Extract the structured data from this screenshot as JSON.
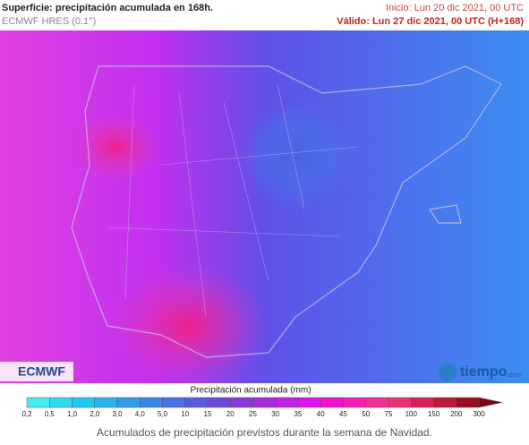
{
  "header": {
    "title": "Superficie: precipitación acumulada en 168h.",
    "model": "ECMWF HRES (0.1°)",
    "start": "Inicio: Lun 20 dic 2021, 00 UTC",
    "valid": "Válido: Lun 27 dic 2021, 00 UTC (H+168)"
  },
  "map": {
    "logo_left": "ECMWF",
    "logo_right": "tiempo",
    "logo_right_suffix": ".com"
  },
  "legend": {
    "title": "Precipitación acumulada (mm)",
    "labels": [
      "0,2",
      "0,5",
      "1,0",
      "2,0",
      "3,0",
      "4,0",
      "5,0",
      "10",
      "15",
      "20",
      "25",
      "30",
      "35",
      "40",
      "45",
      "50",
      "75",
      "100",
      "150",
      "200",
      "300"
    ],
    "colors": [
      "#46eaf2",
      "#2ed9f2",
      "#22c6f2",
      "#28b2f0",
      "#309cec",
      "#3a86e8",
      "#4a6ee4",
      "#5a5ae0",
      "#6c48dc",
      "#8a3ad8",
      "#a42edc",
      "#c220e6",
      "#de12ee",
      "#f010d4",
      "#f020b2",
      "#f03092",
      "#e83272",
      "#d62252",
      "#bc1838",
      "#9c0e20",
      "#7a0610"
    ]
  },
  "caption": "Acumulados de precipitación previstos durante la semana de Navidad."
}
